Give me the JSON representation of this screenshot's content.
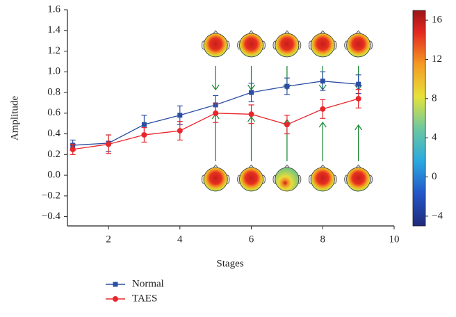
{
  "chart_data": {
    "type": "line",
    "x_label": "Stages",
    "y_label": "Amplitude",
    "xlim": [
      0.85,
      10
    ],
    "xticks": [
      2,
      4,
      6,
      8,
      10
    ],
    "ylim": [
      -0.49,
      1.6
    ],
    "yticks": [
      {
        "value": -0.4,
        "label": "−0.4"
      },
      {
        "value": -0.2,
        "label": "−0.2"
      },
      {
        "value": 0,
        "label": "0.0"
      },
      0.2,
      0.4,
      0.6,
      0.8,
      {
        "value": 1,
        "label": "1.0"
      },
      1.2,
      1.4,
      1.6
    ],
    "x": [
      1,
      2,
      3,
      4,
      5,
      6,
      7,
      8,
      9
    ],
    "series": [
      {
        "name": "Normal",
        "color": "#2b4ea2",
        "marker": "square",
        "values": [
          0.29,
          0.31,
          0.49,
          0.58,
          0.68,
          0.8,
          0.86,
          0.91,
          0.88
        ],
        "errors": [
          0.05,
          0.08,
          0.09,
          0.09,
          0.09,
          0.09,
          0.08,
          0.09,
          0.09
        ]
      },
      {
        "name": "TAES",
        "color": "#e8262b",
        "marker": "circle",
        "values": [
          0.25,
          0.3,
          0.39,
          0.43,
          0.6,
          0.59,
          0.49,
          0.64,
          0.74
        ],
        "errors": [
          0.05,
          0.09,
          0.07,
          0.09,
          0.09,
          0.09,
          0.09,
          0.09,
          0.09
        ]
      }
    ],
    "colorbar": {
      "lim": [
        -5,
        17
      ],
      "ticks": [
        {
          "value": -4,
          "label": "−4"
        },
        0,
        4,
        8,
        12,
        16
      ]
    }
  }
}
